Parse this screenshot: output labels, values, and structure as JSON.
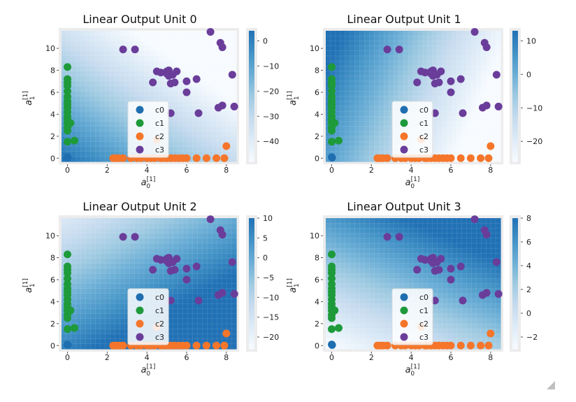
{
  "chart_data": [
    {
      "type": "scatter",
      "title": "Linear Output Unit 0",
      "xlabel_base": "a",
      "xlabel_sup": "[1]",
      "xlabel_sub": "0",
      "ylabel_base": "a",
      "ylabel_sup": "[1]",
      "ylabel_sub": "1",
      "xlim": [
        -0.3,
        8.5
      ],
      "ylim": [
        -0.3,
        11.6
      ],
      "xticks": [
        0,
        2,
        4,
        6,
        8
      ],
      "yticks": [
        0,
        2,
        4,
        6,
        8,
        10
      ],
      "heatmap": {
        "a": -4.0,
        "b": -3.2,
        "c": 2.0,
        "vmin": -48,
        "vmax": 4
      },
      "colorbar_ticks": [
        0,
        -10,
        -20,
        -30,
        -40
      ]
    },
    {
      "type": "scatter",
      "title": "Linear Output Unit 1",
      "xlabel_base": "a",
      "xlabel_sup": "[1]",
      "xlabel_sub": "0",
      "ylabel_base": "a",
      "ylabel_sup": "[1]",
      "ylabel_sub": "1",
      "xlim": [
        -0.3,
        8.5
      ],
      "ylim": [
        -0.3,
        11.6
      ],
      "xticks": [
        0,
        2,
        4,
        6,
        8
      ],
      "yticks": [
        0,
        2,
        4,
        6,
        8,
        10
      ],
      "heatmap": {
        "a": -4.6,
        "b": 1.15,
        "c": 2.5,
        "vmin": -26,
        "vmax": 13
      },
      "colorbar_ticks": [
        10,
        0,
        -10,
        -20
      ]
    },
    {
      "type": "scatter",
      "title": "Linear Output Unit 2",
      "xlabel_base": "a",
      "xlabel_sup": "[1]",
      "xlabel_sub": "0",
      "ylabel_base": "a",
      "ylabel_sup": "[1]",
      "ylabel_sub": "1",
      "xlim": [
        -0.3,
        8.5
      ],
      "ylim": [
        -0.3,
        11.6
      ],
      "xticks": [
        0,
        2,
        4,
        6,
        8
      ],
      "yticks": [
        0,
        2,
        4,
        6,
        8,
        10
      ],
      "heatmap": {
        "a": 1.9,
        "b": -2.0,
        "c": 7.0,
        "vmin": -23,
        "vmax": 10
      },
      "colorbar_ticks": [
        10,
        5,
        0,
        -5,
        -10,
        -15,
        -20
      ]
    },
    {
      "type": "scatter",
      "title": "Linear Output Unit 3",
      "xlabel_base": "a",
      "xlabel_sup": "[1]",
      "xlabel_sub": "0",
      "ylabel_base": "a",
      "ylabel_sup": "[1]",
      "ylabel_sub": "1",
      "xlim": [
        -0.3,
        8.5
      ],
      "ylim": [
        -0.3,
        11.6
      ],
      "xticks": [
        0,
        2,
        4,
        6,
        8
      ],
      "yticks": [
        0,
        2,
        4,
        6,
        8,
        10
      ],
      "heatmap": {
        "a": 0.6,
        "b": 0.75,
        "c": -2.8,
        "vmin": -3,
        "vmax": 8
      },
      "colorbar_ticks": [
        8,
        6,
        4,
        2,
        0,
        -2
      ]
    }
  ],
  "series": [
    {
      "name": "c0",
      "color": "#1f6eb0",
      "points": [
        [
          0.0,
          0.1
        ],
        [
          0.02,
          0.05
        ]
      ]
    },
    {
      "name": "c1",
      "color": "#1e9a3a",
      "points": [
        [
          0.0,
          8.3
        ],
        [
          0.0,
          7.2
        ],
        [
          0.0,
          6.9
        ],
        [
          0.0,
          6.6
        ],
        [
          0.0,
          6.1
        ],
        [
          0.0,
          5.6
        ],
        [
          0.0,
          5.2
        ],
        [
          0.0,
          4.9
        ],
        [
          0.0,
          4.6
        ],
        [
          0.0,
          4.2
        ],
        [
          0.0,
          3.8
        ],
        [
          0.0,
          3.5
        ],
        [
          0.0,
          3.2
        ],
        [
          0.0,
          2.8
        ],
        [
          0.0,
          2.5
        ],
        [
          0.0,
          1.5
        ],
        [
          0.15,
          3.2
        ],
        [
          0.35,
          1.6
        ]
      ]
    },
    {
      "name": "c2",
      "color": "#f5762a",
      "points": [
        [
          2.3,
          0.0
        ],
        [
          2.45,
          0.0
        ],
        [
          2.6,
          0.0
        ],
        [
          2.8,
          0.0
        ],
        [
          3.2,
          0.0
        ],
        [
          3.5,
          0.0
        ],
        [
          3.7,
          0.0
        ],
        [
          4.0,
          0.0
        ],
        [
          4.2,
          0.0
        ],
        [
          4.4,
          0.0
        ],
        [
          4.5,
          1.7
        ],
        [
          4.7,
          0.0
        ],
        [
          4.8,
          0.0
        ],
        [
          5.0,
          0.0
        ],
        [
          5.2,
          0.0
        ],
        [
          5.4,
          0.0
        ],
        [
          5.6,
          0.0
        ],
        [
          5.8,
          0.0
        ],
        [
          6.0,
          0.0
        ],
        [
          6.5,
          0.0
        ],
        [
          7.0,
          0.0
        ],
        [
          7.5,
          0.0
        ],
        [
          7.9,
          0.0
        ],
        [
          8.0,
          1.1
        ]
      ]
    },
    {
      "name": "c3",
      "color": "#6a3d9a",
      "points": [
        [
          2.8,
          9.9
        ],
        [
          3.4,
          9.9
        ],
        [
          4.3,
          6.9
        ],
        [
          4.5,
          7.9
        ],
        [
          4.7,
          7.8
        ],
        [
          5.0,
          7.9
        ],
        [
          5.1,
          7.5
        ],
        [
          5.2,
          6.8
        ],
        [
          5.4,
          6.9
        ],
        [
          5.5,
          7.9
        ],
        [
          5.2,
          4.1
        ],
        [
          5.1,
          8.0
        ],
        [
          6.0,
          6.0
        ],
        [
          6.0,
          7.0
        ],
        [
          6.5,
          7.2
        ],
        [
          6.6,
          4.1
        ],
        [
          7.2,
          11.5
        ],
        [
          7.6,
          4.6
        ],
        [
          7.7,
          10.5
        ],
        [
          7.8,
          10.1
        ],
        [
          7.8,
          4.8
        ],
        [
          8.4,
          4.7
        ],
        [
          8.3,
          7.6
        ],
        [
          5.3,
          7.6
        ],
        [
          5.0,
          7.7
        ]
      ]
    }
  ]
}
